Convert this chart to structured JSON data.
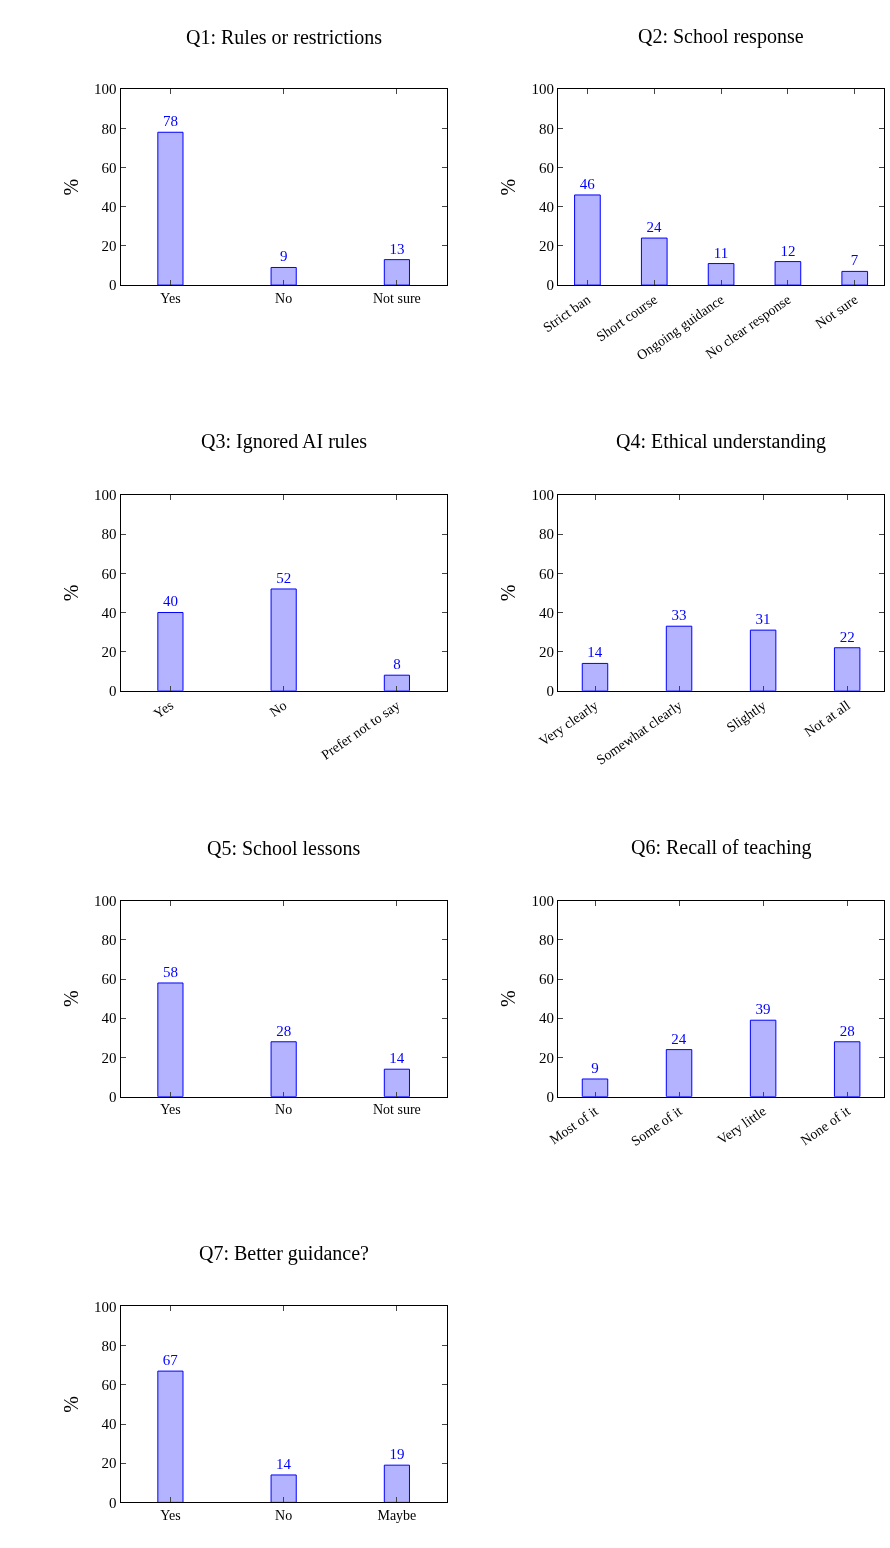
{
  "chart_data": [
    {
      "type": "bar",
      "title": "Q1: Rules or restrictions",
      "categories": [
        "Yes",
        "No",
        "Not sure"
      ],
      "values": [
        78,
        9,
        13
      ],
      "color": "#b3b3ff",
      "ylabel": "%",
      "ylim": [
        0,
        100
      ],
      "yticks": [
        0,
        20,
        40,
        60,
        80,
        100
      ],
      "data_labels": true
    },
    {
      "type": "bar",
      "title": "Q2: School response",
      "categories": [
        "Strict ban",
        "Short course",
        "Ongoing guidance",
        "No clear response",
        "Not sure"
      ],
      "values": [
        46,
        24,
        11,
        12,
        7
      ],
      "color": "#b3b3ff",
      "ylabel": "%",
      "ylim": [
        0,
        100
      ],
      "yticks": [
        0,
        20,
        40,
        60,
        80,
        100
      ],
      "data_labels": true
    },
    {
      "type": "bar",
      "title": "Q3: Ignored AI rules",
      "categories": [
        "Yes",
        "No",
        "Prefer not to say"
      ],
      "values": [
        40,
        52,
        8
      ],
      "color": "#b3b3ff",
      "ylabel": "%",
      "ylim": [
        0,
        100
      ],
      "yticks": [
        0,
        20,
        40,
        60,
        80,
        100
      ],
      "data_labels": true
    },
    {
      "type": "bar",
      "title": "Q4: Ethical understanding",
      "categories": [
        "Very clearly",
        "Somewhat clearly",
        "Slightly",
        "Not at all"
      ],
      "values": [
        14,
        33,
        31,
        22
      ],
      "color": "#b3b3ff",
      "ylabel": "%",
      "ylim": [
        0,
        100
      ],
      "yticks": [
        0,
        20,
        40,
        60,
        80,
        100
      ],
      "data_labels": true
    },
    {
      "type": "bar",
      "title": "Q5: School lessons",
      "categories": [
        "Yes",
        "No",
        "Not sure"
      ],
      "values": [
        58,
        28,
        14
      ],
      "color": "#b3b3ff",
      "ylabel": "%",
      "ylim": [
        0,
        100
      ],
      "yticks": [
        0,
        20,
        40,
        60,
        80,
        100
      ],
      "data_labels": true
    },
    {
      "type": "bar",
      "title": "Q6: Recall of teaching",
      "categories": [
        "Most of it",
        "Some of it",
        "Very little",
        "None of it"
      ],
      "values": [
        9,
        24,
        39,
        28
      ],
      "color": "#b3b3ff",
      "ylabel": "%",
      "ylim": [
        0,
        100
      ],
      "yticks": [
        0,
        20,
        40,
        60,
        80,
        100
      ],
      "data_labels": true
    },
    {
      "type": "bar",
      "title": "Q7: Better guidance?",
      "categories": [
        "Yes",
        "No",
        "Maybe"
      ],
      "values": [
        67,
        14,
        19
      ],
      "color": "#b3b3ff",
      "ylabel": "%",
      "ylim": [
        0,
        100
      ],
      "yticks": [
        0,
        20,
        40,
        60,
        80,
        100
      ],
      "data_labels": true
    }
  ]
}
